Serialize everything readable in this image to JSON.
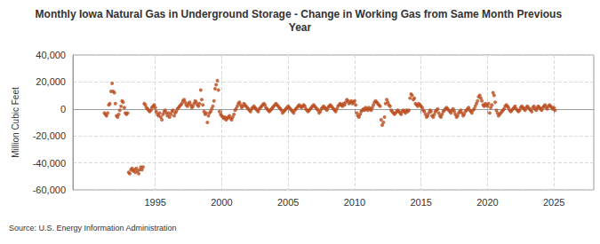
{
  "chart_data": {
    "type": "scatter",
    "title": "Monthly Iowa Natural Gas in Underground Storage - Change in Working Gas from Same Month Previous Year",
    "ylabel": "Million Cubic Feet",
    "annotation": "Source: U.S. Energy Information Administration",
    "color": "#b94b1d",
    "marker": "circle",
    "grid": true,
    "xlim": [
      1988.8,
      2028
    ],
    "xticks": [
      1995,
      2000,
      2005,
      2010,
      2015,
      2020,
      2025
    ],
    "ylim": [
      -60000,
      40000
    ],
    "yticks": [
      {
        "value": -60000,
        "label": "-60,000"
      },
      {
        "value": -40000,
        "label": "-40,000"
      },
      {
        "value": -20000,
        "label": "-20,000"
      },
      0,
      {
        "value": 20000,
        "label": "20,000"
      },
      {
        "value": 40000,
        "label": "40,000"
      }
    ],
    "x": [
      1991.17,
      1991.25,
      1991.33,
      1991.42,
      1991.5,
      1991.58,
      1991.67,
      1991.75,
      1991.83,
      1991.92,
      1992,
      1992.08,
      1992.17,
      1992.25,
      1992.33,
      1992.42,
      1992.5,
      1992.58,
      1992.67,
      1992.75,
      1992.83,
      1992.92,
      1993,
      1993.08,
      1993.17,
      1993.25,
      1993.33,
      1993.42,
      1993.5,
      1993.58,
      1993.67,
      1993.75,
      1993.83,
      1993.92,
      1994,
      1994.08,
      1994.17,
      1994.25,
      1994.33,
      1994.42,
      1994.5,
      1994.58,
      1994.67,
      1994.75,
      1994.83,
      1994.92,
      1995,
      1995.08,
      1995.17,
      1995.25,
      1995.33,
      1995.42,
      1995.5,
      1995.58,
      1995.67,
      1995.75,
      1995.83,
      1995.92,
      1996,
      1996.08,
      1996.17,
      1996.25,
      1996.33,
      1996.42,
      1996.5,
      1996.58,
      1996.67,
      1996.75,
      1996.83,
      1996.92,
      1997,
      1997.08,
      1997.17,
      1997.25,
      1997.33,
      1997.42,
      1997.5,
      1997.58,
      1997.67,
      1997.75,
      1997.83,
      1997.92,
      1998,
      1998.08,
      1998.17,
      1998.25,
      1998.33,
      1998.42,
      1998.5,
      1998.58,
      1998.67,
      1998.75,
      1998.83,
      1998.92,
      1999,
      1999.08,
      1999.17,
      1999.25,
      1999.33,
      1999.42,
      1999.5,
      1999.58,
      1999.67,
      1999.75,
      1999.83,
      1999.92,
      2000,
      2000.08,
      2000.17,
      2000.25,
      2000.33,
      2000.42,
      2000.5,
      2000.58,
      2000.67,
      2000.75,
      2000.83,
      2000.92,
      2001,
      2001.08,
      2001.17,
      2001.25,
      2001.33,
      2001.42,
      2001.5,
      2001.58,
      2001.67,
      2001.75,
      2001.83,
      2001.92,
      2002,
      2002.08,
      2002.17,
      2002.25,
      2002.33,
      2002.42,
      2002.5,
      2002.58,
      2002.67,
      2002.75,
      2002.83,
      2002.92,
      2003,
      2003.08,
      2003.17,
      2003.25,
      2003.33,
      2003.42,
      2003.5,
      2003.58,
      2003.67,
      2003.75,
      2003.83,
      2003.92,
      2004,
      2004.08,
      2004.17,
      2004.25,
      2004.33,
      2004.42,
      2004.5,
      2004.58,
      2004.67,
      2004.75,
      2004.83,
      2004.92,
      2005,
      2005.08,
      2005.17,
      2005.25,
      2005.33,
      2005.42,
      2005.5,
      2005.58,
      2005.67,
      2005.75,
      2005.83,
      2005.92,
      2006,
      2006.08,
      2006.17,
      2006.25,
      2006.33,
      2006.42,
      2006.5,
      2006.58,
      2006.67,
      2006.75,
      2006.83,
      2006.92,
      2007,
      2007.08,
      2007.17,
      2007.25,
      2007.33,
      2007.42,
      2007.5,
      2007.58,
      2007.67,
      2007.75,
      2007.83,
      2007.92,
      2008,
      2008.08,
      2008.17,
      2008.25,
      2008.33,
      2008.42,
      2008.5,
      2008.58,
      2008.67,
      2008.75,
      2008.83,
      2008.92,
      2009,
      2009.08,
      2009.17,
      2009.25,
      2009.33,
      2009.42,
      2009.5,
      2009.58,
      2009.67,
      2009.75,
      2009.83,
      2009.92,
      2010,
      2010.08,
      2010.17,
      2010.25,
      2010.33,
      2010.42,
      2010.5,
      2010.58,
      2010.67,
      2010.75,
      2010.83,
      2010.92,
      2011,
      2011.08,
      2011.17,
      2011.25,
      2011.33,
      2011.42,
      2011.5,
      2011.58,
      2011.67,
      2011.75,
      2011.83,
      2011.92,
      2012,
      2012.08,
      2012.17,
      2012.25,
      2012.33,
      2012.42,
      2012.5,
      2012.58,
      2012.67,
      2012.75,
      2012.83,
      2012.92,
      2013,
      2013.08,
      2013.17,
      2013.25,
      2013.33,
      2013.42,
      2013.5,
      2013.58,
      2013.67,
      2013.75,
      2013.83,
      2013.92,
      2014,
      2014.08,
      2014.17,
      2014.25,
      2014.33,
      2014.42,
      2014.5,
      2014.58,
      2014.67,
      2014.75,
      2014.83,
      2014.92,
      2015,
      2015.08,
      2015.17,
      2015.25,
      2015.33,
      2015.42,
      2015.5,
      2015.58,
      2015.67,
      2015.75,
      2015.83,
      2015.92,
      2016,
      2016.08,
      2016.17,
      2016.25,
      2016.33,
      2016.42,
      2016.5,
      2016.58,
      2016.67,
      2016.75,
      2016.83,
      2016.92,
      2017,
      2017.08,
      2017.17,
      2017.25,
      2017.33,
      2017.42,
      2017.5,
      2017.58,
      2017.67,
      2017.75,
      2017.83,
      2017.92,
      2018,
      2018.08,
      2018.17,
      2018.25,
      2018.33,
      2018.42,
      2018.5,
      2018.58,
      2018.67,
      2018.75,
      2018.83,
      2018.92,
      2019,
      2019.08,
      2019.17,
      2019.25,
      2019.33,
      2019.42,
      2019.5,
      2019.58,
      2019.67,
      2019.75,
      2019.83,
      2019.92,
      2020,
      2020.08,
      2020.17,
      2020.25,
      2020.33,
      2020.42,
      2020.5,
      2020.58,
      2020.67,
      2020.75,
      2020.83,
      2020.92,
      2021,
      2021.08,
      2021.17,
      2021.25,
      2021.33,
      2021.42,
      2021.5,
      2021.58,
      2021.67,
      2021.75,
      2021.83,
      2021.92,
      2022,
      2022.08,
      2022.17,
      2022.25,
      2022.33,
      2022.42,
      2022.5,
      2022.58,
      2022.67,
      2022.75,
      2022.83,
      2022.92,
      2023,
      2023.08,
      2023.17,
      2023.25,
      2023.33,
      2023.42,
      2023.5,
      2023.58,
      2023.67,
      2023.75,
      2023.83,
      2023.92,
      2024,
      2024.08,
      2024.17,
      2024.25,
      2024.33,
      2024.42,
      2024.5,
      2024.58,
      2024.67,
      2024.75,
      2024.83,
      2024.92,
      2025,
      2025.08
    ],
    "values": [
      -3000,
      -4000,
      -5000,
      -3000,
      3000,
      4000,
      13000,
      19000,
      13000,
      12000,
      4000,
      -5000,
      -6000,
      -4000,
      -1000,
      2000,
      6000,
      5000,
      1000,
      -3000,
      -4000,
      -3000,
      -47000,
      -48000,
      -45000,
      -44000,
      -46000,
      -45000,
      -47000,
      -44000,
      -46000,
      -48000,
      -45000,
      -43000,
      -45000,
      -43000,
      4000,
      3000,
      1000,
      0,
      -1000,
      -2000,
      -1000,
      1000,
      2000,
      3000,
      1000,
      -2000,
      -4000,
      -5000,
      -3000,
      -6000,
      -8000,
      -4000,
      -2000,
      -1000,
      -3000,
      -5000,
      -3000,
      -6000,
      -4000,
      -2000,
      -1000,
      -5000,
      -3000,
      -2000,
      0,
      1000,
      2000,
      3000,
      4000,
      6000,
      7000,
      5000,
      3000,
      2000,
      4000,
      5000,
      3000,
      1000,
      2000,
      4000,
      6000,
      5000,
      3000,
      2000,
      4000,
      14000,
      7000,
      3000,
      -2000,
      -4000,
      -3000,
      -10000,
      -5000,
      -3000,
      -2000,
      0,
      2000,
      6000,
      15000,
      18000,
      21000,
      14000,
      -2000,
      -4000,
      -5000,
      -6000,
      -7000,
      -6000,
      -8000,
      -7000,
      -6000,
      -5000,
      -7000,
      -8000,
      -6000,
      -4000,
      -1000,
      0,
      2000,
      4000,
      5000,
      3000,
      1000,
      2000,
      4000,
      3000,
      2000,
      1000,
      0,
      -1000,
      -2000,
      0,
      1000,
      2000,
      1000,
      0,
      -1000,
      -2000,
      0,
      1000,
      2000,
      3000,
      4000,
      3000,
      1000,
      0,
      -1000,
      -2000,
      -1000,
      0,
      1000,
      2000,
      3000,
      4000,
      3000,
      2000,
      1000,
      0,
      -1000,
      -3000,
      -2000,
      -1000,
      0,
      1000,
      2000,
      1000,
      0,
      -1000,
      -2000,
      -3000,
      -1000,
      0,
      1000,
      2000,
      3000,
      2000,
      1000,
      2000,
      3000,
      2000,
      0,
      -1000,
      -2000,
      -1000,
      0,
      1000,
      2000,
      3000,
      2000,
      1000,
      0,
      -1000,
      -3000,
      -2000,
      0,
      1000,
      2000,
      1000,
      0,
      -1000,
      1000,
      2000,
      3000,
      2000,
      1000,
      0,
      -1000,
      -2000,
      0,
      2000,
      3000,
      4000,
      3000,
      2000,
      4000,
      3000,
      5000,
      7000,
      6000,
      4000,
      5000,
      6000,
      4000,
      5000,
      6000,
      3000,
      -3000,
      -5000,
      -6000,
      -4000,
      -2000,
      -1000,
      0,
      -1000,
      1000,
      0,
      -1000,
      1000,
      0,
      -1000,
      1000,
      3000,
      5000,
      6000,
      5000,
      4000,
      3000,
      2000,
      -8000,
      -12000,
      -10000,
      -6000,
      4000,
      7000,
      5000,
      3000,
      2000,
      -1000,
      -2000,
      -3000,
      -4000,
      -3000,
      -2000,
      -1000,
      -2000,
      -3000,
      -4000,
      -2000,
      -1000,
      -2000,
      -3000,
      -1000,
      -2000,
      -1000,
      8000,
      11000,
      10000,
      7000,
      8000,
      4000,
      3000,
      2000,
      4000,
      3000,
      2000,
      1000,
      -1000,
      -2000,
      -4000,
      -6000,
      -5000,
      -3000,
      -1000,
      -2000,
      -5000,
      -6000,
      -4000,
      -2000,
      -1000,
      0,
      -3000,
      -5000,
      -6000,
      -4000,
      -2000,
      -1000,
      0,
      1000,
      0,
      -1000,
      -2000,
      -3000,
      -1000,
      0,
      -2000,
      -4000,
      -6000,
      -5000,
      -3000,
      -2000,
      -1000,
      -3000,
      -5000,
      -4000,
      -2000,
      -1000,
      0,
      1000,
      -1000,
      -2000,
      -3000,
      -1000,
      0,
      2000,
      4000,
      6000,
      9000,
      10000,
      8000,
      6000,
      3000,
      2000,
      4000,
      3000,
      2000,
      4000,
      -3000,
      1000,
      3000,
      12000,
      10000,
      5000,
      -1000,
      -3000,
      -5000,
      -4000,
      -3000,
      -2000,
      -1000,
      0,
      2000,
      3000,
      2000,
      1000,
      -1000,
      -2000,
      -1000,
      0,
      1000,
      2000,
      0,
      -1000,
      -2000,
      -1000,
      1000,
      2000,
      1000,
      0,
      -1000,
      1000,
      2000,
      1000,
      0,
      -1000,
      -2000,
      1000,
      2000,
      0,
      -1000,
      1000,
      2000,
      1000,
      0,
      -1000,
      1000,
      2000,
      3000,
      1000,
      0,
      2000,
      3000,
      2000,
      1000,
      0,
      1000,
      -1000
    ]
  }
}
